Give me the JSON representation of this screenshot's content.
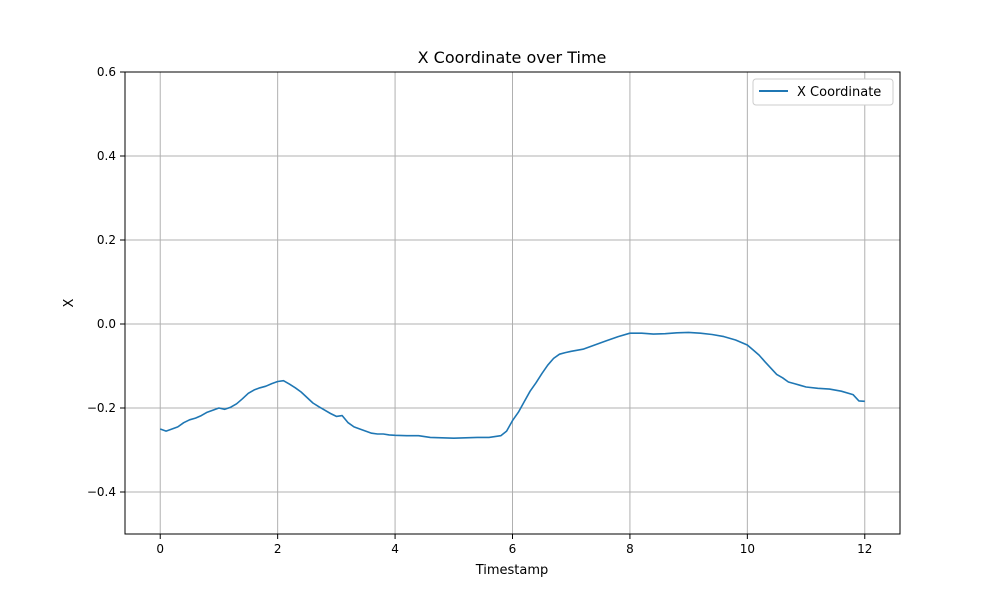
{
  "chart_data": {
    "type": "line",
    "title": "X Coordinate over Time",
    "xlabel": "Timestamp",
    "ylabel": "X",
    "xlim": [
      -0.6,
      12.6
    ],
    "ylim": [
      -0.5,
      0.6
    ],
    "xticks": [
      0,
      2,
      4,
      6,
      8,
      10,
      12
    ],
    "xtick_labels": [
      "0",
      "2",
      "4",
      "6",
      "8",
      "10",
      "12"
    ],
    "yticks": [
      -0.4,
      -0.2,
      0.0,
      0.2,
      0.4,
      0.6
    ],
    "ytick_labels": [
      "−0.4",
      "−0.2",
      "0.0",
      "0.2",
      "0.4",
      "0.6"
    ],
    "grid": true,
    "legend_position": "top-right",
    "series": [
      {
        "name": "X Coordinate",
        "color": "#1f77b4",
        "x": [
          0.0,
          0.1,
          0.2,
          0.3,
          0.4,
          0.5,
          0.6,
          0.7,
          0.8,
          0.9,
          1.0,
          1.1,
          1.2,
          1.3,
          1.4,
          1.5,
          1.6,
          1.7,
          1.8,
          1.9,
          2.0,
          2.1,
          2.2,
          2.3,
          2.4,
          2.5,
          2.6,
          2.7,
          2.8,
          2.9,
          3.0,
          3.1,
          3.2,
          3.3,
          3.4,
          3.5,
          3.6,
          3.7,
          3.8,
          3.9,
          4.0,
          4.2,
          4.4,
          4.6,
          4.8,
          5.0,
          5.2,
          5.4,
          5.6,
          5.7,
          5.8,
          5.9,
          6.0,
          6.1,
          6.2,
          6.3,
          6.4,
          6.5,
          6.6,
          6.7,
          6.8,
          6.9,
          7.0,
          7.2,
          7.4,
          7.6,
          7.8,
          8.0,
          8.2,
          8.4,
          8.6,
          8.8,
          9.0,
          9.2,
          9.4,
          9.6,
          9.8,
          10.0,
          10.1,
          10.2,
          10.3,
          10.4,
          10.5,
          10.6,
          10.7,
          10.8,
          10.9,
          11.0,
          11.2,
          11.4,
          11.6,
          11.8,
          11.9,
          12.0
        ],
        "y": [
          -0.25,
          -0.255,
          -0.25,
          -0.245,
          -0.235,
          -0.228,
          -0.224,
          -0.218,
          -0.21,
          -0.205,
          -0.2,
          -0.203,
          -0.198,
          -0.19,
          -0.178,
          -0.165,
          -0.157,
          -0.152,
          -0.148,
          -0.142,
          -0.137,
          -0.135,
          -0.143,
          -0.152,
          -0.162,
          -0.175,
          -0.188,
          -0.197,
          -0.205,
          -0.213,
          -0.22,
          -0.218,
          -0.235,
          -0.245,
          -0.25,
          -0.255,
          -0.26,
          -0.262,
          -0.262,
          -0.264,
          -0.265,
          -0.266,
          -0.266,
          -0.27,
          -0.271,
          -0.272,
          -0.271,
          -0.27,
          -0.27,
          -0.268,
          -0.266,
          -0.255,
          -0.23,
          -0.21,
          -0.185,
          -0.16,
          -0.14,
          -0.118,
          -0.098,
          -0.082,
          -0.072,
          -0.068,
          -0.065,
          -0.06,
          -0.05,
          -0.04,
          -0.03,
          -0.022,
          -0.022,
          -0.024,
          -0.023,
          -0.021,
          -0.02,
          -0.022,
          -0.025,
          -0.03,
          -0.038,
          -0.05,
          -0.062,
          -0.074,
          -0.09,
          -0.105,
          -0.12,
          -0.128,
          -0.138,
          -0.142,
          -0.146,
          -0.15,
          -0.153,
          -0.155,
          -0.16,
          -0.168,
          -0.183,
          -0.184
        ]
      }
    ]
  }
}
